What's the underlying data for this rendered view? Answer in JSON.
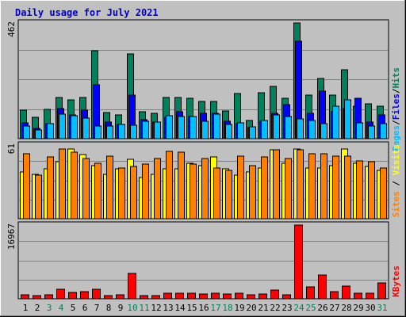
{
  "title": "Daily usage for July 2021",
  "legend": {
    "top": [
      "Pages",
      "Files",
      "Hits"
    ],
    "middle": [
      "Sites",
      "Visits"
    ],
    "bottom": [
      "KBytes"
    ]
  },
  "colors": {
    "hits": "#00805c",
    "files": "#0000ff",
    "pages": "#00c0ff",
    "visits": "#ffff00",
    "sites": "#ff8000",
    "kbytes": "#ff0000",
    "title": "#0000cc",
    "weekend_day": "#00805c",
    "panel_bg": "#c0c0c0",
    "gridline": "#808080"
  },
  "chart_data": [
    {
      "type": "bar",
      "name": "hits-files-pages",
      "ymax_label": "462",
      "ylim": [
        0,
        462
      ],
      "categories": [
        "1",
        "2",
        "3",
        "4",
        "5",
        "6",
        "7",
        "8",
        "9",
        "10",
        "11",
        "12",
        "13",
        "14",
        "15",
        "16",
        "17",
        "18",
        "19",
        "20",
        "21",
        "22",
        "23",
        "24",
        "25",
        "26",
        "27",
        "28",
        "29",
        "30",
        "31"
      ],
      "weekend_days": [
        "3",
        "4",
        "10",
        "11",
        "17",
        "18",
        "24",
        "25",
        "31"
      ],
      "series": [
        {
          "name": "Hits",
          "values": [
            115,
            85,
            118,
            165,
            155,
            165,
            350,
            105,
            95,
            340,
            108,
            100,
            165,
            165,
            160,
            148,
            148,
            110,
            180,
            72,
            185,
            210,
            160,
            462,
            175,
            240,
            175,
            275,
            130,
            140,
            130
          ]
        },
        {
          "name": "Files",
          "values": [
            63,
            40,
            60,
            120,
            95,
            115,
            215,
            65,
            58,
            175,
            75,
            65,
            85,
            107,
            90,
            100,
            100,
            70,
            60,
            45,
            70,
            100,
            135,
            390,
            100,
            190,
            107,
            120,
            160,
            65,
            95
          ]
        },
        {
          "name": "Pages",
          "values": [
            50,
            35,
            60,
            98,
            92,
            82,
            52,
            52,
            58,
            55,
            70,
            65,
            92,
            90,
            90,
            70,
            97,
            57,
            63,
            47,
            73,
            95,
            90,
            80,
            73,
            60,
            130,
            155,
            63,
            50,
            60
          ]
        }
      ]
    },
    {
      "type": "bar",
      "name": "visits-sites",
      "ymax_label": "61",
      "ylim": [
        0,
        61
      ],
      "categories": [
        "1",
        "2",
        "3",
        "4",
        "5",
        "6",
        "7",
        "8",
        "9",
        "10",
        "11",
        "12",
        "13",
        "14",
        "15",
        "16",
        "17",
        "18",
        "19",
        "20",
        "21",
        "22",
        "23",
        "24",
        "25",
        "26",
        "27",
        "28",
        "29",
        "30",
        "31"
      ],
      "series": [
        {
          "name": "Visits",
          "values": [
            39,
            37,
            41,
            47,
            58,
            53,
            44,
            37,
            41,
            49,
            34,
            37,
            41,
            41,
            46,
            44,
            51,
            41,
            36,
            39,
            42,
            57,
            46,
            58,
            42,
            42,
            44,
            58,
            46,
            43,
            40
          ]
        },
        {
          "name": "Sites",
          "values": [
            54,
            36,
            51,
            58,
            55,
            50,
            46,
            52,
            42,
            43,
            45,
            50,
            56,
            55,
            45,
            50,
            42,
            40,
            52,
            44,
            51,
            57,
            50,
            57,
            54,
            54,
            52,
            52,
            48,
            47,
            42
          ]
        }
      ]
    },
    {
      "type": "bar",
      "name": "kbytes",
      "ymax_label": "16967",
      "ylim": [
        0,
        16967
      ],
      "categories": [
        "1",
        "2",
        "3",
        "4",
        "5",
        "6",
        "7",
        "8",
        "9",
        "10",
        "11",
        "12",
        "13",
        "14",
        "15",
        "16",
        "17",
        "18",
        "19",
        "20",
        "21",
        "22",
        "23",
        "24",
        "25",
        "26",
        "27",
        "28",
        "29",
        "30",
        "31"
      ],
      "series": [
        {
          "name": "KBytes",
          "values": [
            1000,
            750,
            950,
            2100,
            1450,
            1600,
            2200,
            800,
            850,
            5800,
            700,
            750,
            1300,
            1300,
            1300,
            1150,
            1250,
            1050,
            1200,
            900,
            1100,
            2000,
            1000,
            16967,
            2800,
            5400,
            1650,
            3000,
            1300,
            1300,
            3700
          ]
        }
      ]
    }
  ]
}
